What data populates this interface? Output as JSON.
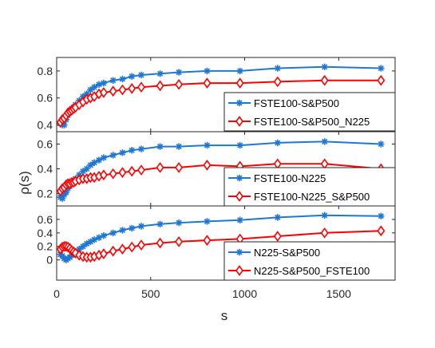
{
  "figure": {
    "xlabel": "s",
    "ylabel": "ρ(s)"
  },
  "colors": {
    "blue": "#1f77d4",
    "red": "#ff0000",
    "axis": "#262626"
  },
  "chart_data": [
    {
      "type": "line",
      "xlim": [
        0,
        1800
      ],
      "ylim": [
        0.35,
        0.9
      ],
      "yticks": [
        "0.4",
        "0.6",
        "0.8"
      ],
      "ytick_values": [
        0.4,
        0.6,
        0.8
      ],
      "legend_position": "bottom-right",
      "series": [
        {
          "name": "FSTE100-S&P500",
          "color": "#1f77d4",
          "marker": "asterisk",
          "x": [
            20,
            30,
            40,
            50,
            60,
            70,
            80,
            90,
            100,
            120,
            140,
            160,
            180,
            200,
            225,
            250,
            300,
            350,
            400,
            450,
            550,
            650,
            800,
            975,
            1175,
            1425,
            1725
          ],
          "y": [
            0.41,
            0.4,
            0.4,
            0.44,
            0.47,
            0.49,
            0.51,
            0.53,
            0.55,
            0.58,
            0.61,
            0.63,
            0.66,
            0.68,
            0.7,
            0.71,
            0.73,
            0.74,
            0.76,
            0.77,
            0.78,
            0.79,
            0.8,
            0.8,
            0.82,
            0.83,
            0.82
          ]
        },
        {
          "name": "FSTE100-S&P500_N225",
          "color": "#ff0000",
          "marker": "diamond",
          "x": [
            20,
            30,
            40,
            50,
            60,
            70,
            80,
            90,
            100,
            120,
            140,
            160,
            180,
            200,
            225,
            250,
            300,
            350,
            400,
            450,
            550,
            650,
            800,
            975,
            1175,
            1425,
            1725
          ],
          "y": [
            0.42,
            0.44,
            0.45,
            0.47,
            0.49,
            0.5,
            0.51,
            0.52,
            0.53,
            0.55,
            0.57,
            0.59,
            0.6,
            0.61,
            0.63,
            0.64,
            0.65,
            0.66,
            0.67,
            0.68,
            0.69,
            0.7,
            0.71,
            0.71,
            0.72,
            0.73,
            0.73
          ]
        }
      ]
    },
    {
      "type": "line",
      "xlim": [
        0,
        1800
      ],
      "ylim": [
        0.1,
        0.7
      ],
      "yticks": [
        "0.2",
        "0.4",
        "0.6"
      ],
      "ytick_values": [
        0.2,
        0.4,
        0.6
      ],
      "legend_position": "bottom-right",
      "series": [
        {
          "name": "FSTE100-N225",
          "color": "#1f77d4",
          "marker": "asterisk",
          "x": [
            20,
            30,
            40,
            50,
            60,
            70,
            80,
            90,
            100,
            120,
            140,
            160,
            180,
            200,
            225,
            250,
            300,
            350,
            400,
            450,
            550,
            650,
            800,
            975,
            1175,
            1425,
            1725
          ],
          "y": [
            0.17,
            0.16,
            0.19,
            0.21,
            0.24,
            0.26,
            0.28,
            0.3,
            0.32,
            0.35,
            0.38,
            0.4,
            0.43,
            0.45,
            0.47,
            0.49,
            0.51,
            0.53,
            0.55,
            0.56,
            0.58,
            0.58,
            0.59,
            0.59,
            0.61,
            0.62,
            0.6
          ]
        },
        {
          "name": "FSTE100-N225_S&P500",
          "color": "#ff0000",
          "marker": "diamond",
          "x": [
            20,
            30,
            40,
            50,
            60,
            70,
            80,
            90,
            100,
            120,
            140,
            160,
            180,
            200,
            225,
            250,
            300,
            350,
            400,
            450,
            550,
            650,
            800,
            975,
            1175,
            1425,
            1725
          ],
          "y": [
            0.22,
            0.24,
            0.25,
            0.27,
            0.28,
            0.28,
            0.29,
            0.29,
            0.3,
            0.31,
            0.32,
            0.32,
            0.33,
            0.33,
            0.34,
            0.35,
            0.36,
            0.37,
            0.38,
            0.39,
            0.41,
            0.41,
            0.43,
            0.42,
            0.44,
            0.44,
            0.4
          ]
        }
      ]
    },
    {
      "type": "line",
      "xlim": [
        0,
        1800
      ],
      "ylim": [
        -0.3,
        0.8
      ],
      "yticks": [
        "0",
        "0.2",
        "0.4",
        "0.6"
      ],
      "ytick_values": [
        0,
        0.2,
        0.4,
        0.6
      ],
      "legend_position": "bottom-right",
      "series": [
        {
          "name": "N225-S&P500",
          "color": "#1f77d4",
          "marker": "asterisk",
          "x": [
            20,
            30,
            40,
            50,
            60,
            70,
            80,
            90,
            100,
            120,
            140,
            160,
            180,
            200,
            225,
            250,
            300,
            350,
            400,
            450,
            550,
            650,
            800,
            975,
            1175,
            1425,
            1725
          ],
          "y": [
            0.08,
            0.06,
            0.02,
            0.0,
            0.02,
            0.04,
            0.07,
            0.1,
            0.12,
            0.16,
            0.2,
            0.24,
            0.27,
            0.3,
            0.33,
            0.36,
            0.4,
            0.44,
            0.47,
            0.5,
            0.53,
            0.55,
            0.57,
            0.59,
            0.63,
            0.66,
            0.65
          ]
        },
        {
          "name": "N225-S&P500_FSTE100",
          "color": "#ff0000",
          "marker": "diamond",
          "x": [
            20,
            30,
            40,
            50,
            60,
            70,
            80,
            90,
            100,
            120,
            140,
            160,
            180,
            200,
            225,
            250,
            300,
            350,
            400,
            450,
            550,
            650,
            800,
            975,
            1175,
            1425,
            1725
          ],
          "y": [
            0.16,
            0.19,
            0.2,
            0.2,
            0.19,
            0.17,
            0.14,
            0.12,
            0.1,
            0.07,
            0.05,
            0.04,
            0.04,
            0.05,
            0.07,
            0.09,
            0.13,
            0.16,
            0.19,
            0.22,
            0.25,
            0.27,
            0.29,
            0.31,
            0.35,
            0.4,
            0.43
          ]
        }
      ]
    }
  ],
  "x_axis": {
    "ticks": [
      "0",
      "500",
      "1000",
      "1500"
    ],
    "tick_values": [
      0,
      500,
      1000,
      1500
    ]
  }
}
